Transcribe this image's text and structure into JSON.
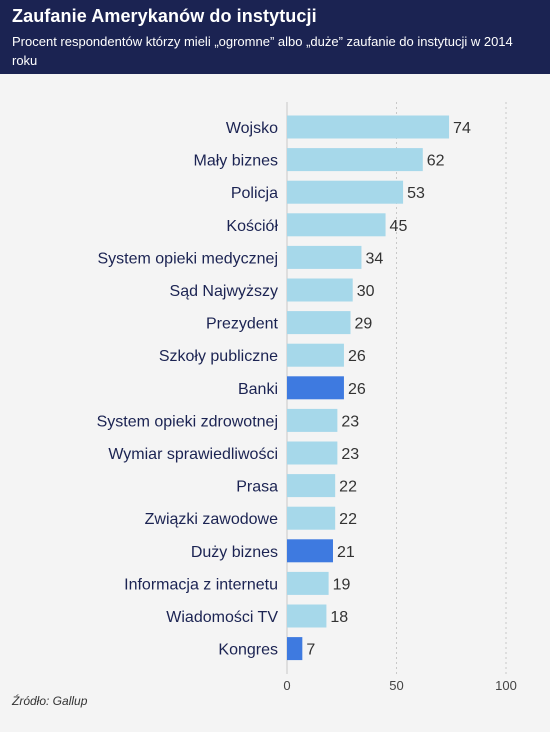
{
  "header": {
    "title": "Zaufanie Amerykanów do instytucji",
    "subtitle": "Procent respondentów którzy mieli „ogromne” albo „duże” zaufanie do instytucji w 2014 roku"
  },
  "source": "Źródło: Gallup",
  "colors": {
    "header_bg": "#1b2352",
    "bar_default": "#a6d8ea",
    "bar_highlight": "#3e7ae0",
    "gridline": "#c8c8c8"
  },
  "chart_data": {
    "type": "bar",
    "orientation": "horizontal",
    "categories": [
      "Wojsko",
      "Mały biznes",
      "Policja",
      "Kościół",
      "System opieki medycznej",
      "Sąd Najwyższy",
      "Prezydent",
      "Szkoły publiczne",
      "Banki",
      "System opieki zdrowotnej",
      "Wymiar sprawiedliwości",
      "Prasa",
      "Związki zawodowe",
      "Duży biznes",
      "Informacja z internetu",
      "Wiadomości TV",
      "Kongres"
    ],
    "values": [
      74,
      62,
      53,
      45,
      34,
      30,
      29,
      26,
      26,
      23,
      23,
      22,
      22,
      21,
      19,
      18,
      7
    ],
    "highlighted": [
      "Banki",
      "Duży biznes",
      "Kongres"
    ],
    "xlim": [
      0,
      100
    ],
    "xticks": [
      "0",
      "50",
      "100"
    ],
    "grid": "vertical dotted",
    "legend": "none"
  }
}
